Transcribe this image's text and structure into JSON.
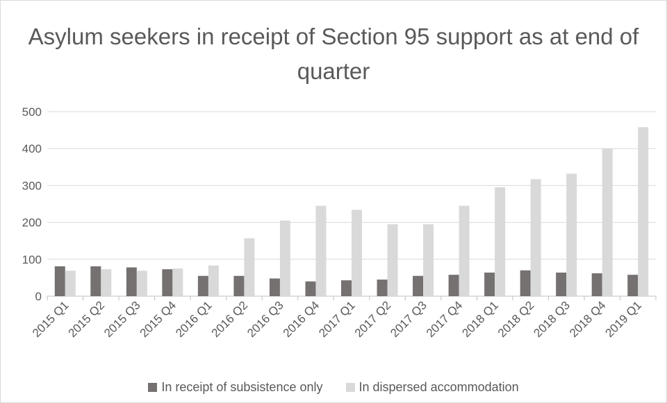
{
  "chart_data": {
    "type": "bar",
    "title": "Asylum seekers in receipt of Section 95 support as at end of quarter",
    "categories": [
      "2015 Q1",
      "2015 Q2",
      "2015 Q3",
      "2015 Q4",
      "2016 Q1",
      "2016 Q2",
      "2016 Q3",
      "2016 Q4",
      "2017 Q1",
      "2017 Q2",
      "2017 Q3",
      "2017 Q4",
      "2018 Q1",
      "2018 Q2",
      "2018 Q3",
      "2018 Q4",
      "2019 Q1"
    ],
    "series": [
      {
        "name": "In receipt of subsistence only",
        "color": "#767171",
        "values": [
          81,
          81,
          78,
          73,
          55,
          55,
          48,
          40,
          43,
          45,
          55,
          58,
          64,
          70,
          64,
          62,
          58
        ]
      },
      {
        "name": "In dispersed accommodation",
        "color": "#d9d9d9",
        "values": [
          69,
          73,
          69,
          75,
          83,
          157,
          205,
          245,
          234,
          195,
          195,
          245,
          295,
          317,
          332,
          400,
          458
        ]
      }
    ],
    "ylim": [
      0,
      500
    ],
    "yticks": [
      0,
      100,
      200,
      300,
      400,
      500
    ],
    "grid": true,
    "legend": "bottom"
  }
}
